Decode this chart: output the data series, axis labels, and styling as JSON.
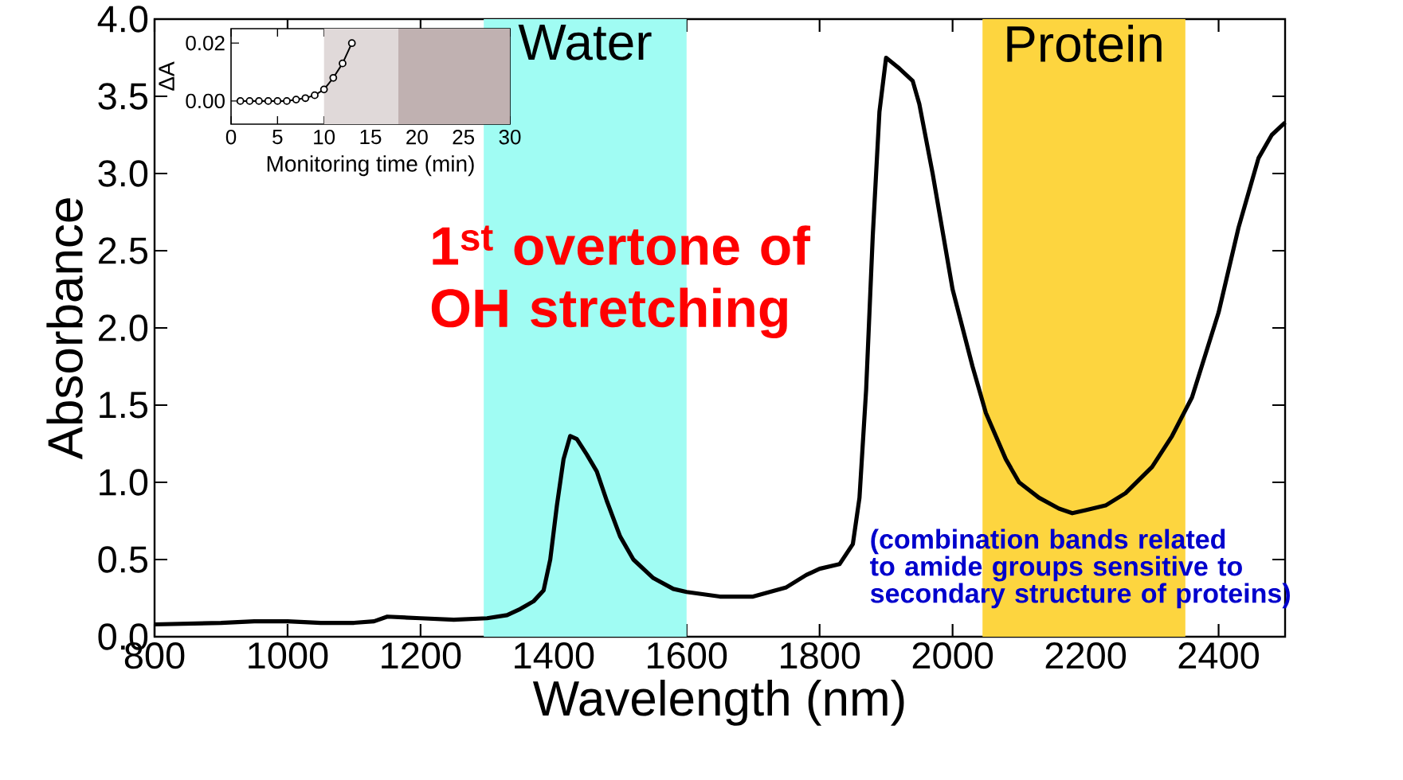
{
  "chart_data": [
    {
      "type": "line",
      "xlabel": "Wavelength (nm)",
      "ylabel": "Absorbance",
      "xlim": [
        800,
        2500
      ],
      "ylim": [
        0,
        4.0
      ],
      "xticks": [
        800,
        1000,
        1200,
        1400,
        1600,
        1800,
        2000,
        2200,
        2400
      ],
      "yticks": [
        {
          "value": 0,
          "label": "0.0"
        },
        {
          "value": 0.5,
          "label": "0.5"
        },
        {
          "value": 1.0,
          "label": "1.0"
        },
        {
          "value": 1.5,
          "label": "1.5"
        },
        {
          "value": 2.0,
          "label": "2.0"
        },
        {
          "value": 2.5,
          "label": "2.5"
        },
        {
          "value": 3.0,
          "label": "3.0"
        },
        {
          "value": 3.5,
          "label": "3.5"
        },
        {
          "value": 4.0,
          "label": "4.0"
        }
      ],
      "bands": [
        {
          "axis": "x",
          "from": 1295,
          "to": 1600,
          "label": "Water",
          "color": "#a0fcf3"
        },
        {
          "axis": "x",
          "from": 2045,
          "to": 2350,
          "label": "Protein",
          "color": "#fdd53f"
        }
      ],
      "annotations": [
        "1$^{st}$ overtone of OH stretching",
        "(combination bands related to amide groups sensitive to secondary structure of proteins)"
      ],
      "x": [
        800,
        900,
        950,
        1000,
        1050,
        1100,
        1130,
        1150,
        1200,
        1250,
        1300,
        1330,
        1350,
        1370,
        1385,
        1395,
        1405,
        1415,
        1425,
        1435,
        1450,
        1465,
        1480,
        1500,
        1520,
        1550,
        1580,
        1600,
        1650,
        1700,
        1750,
        1780,
        1800,
        1830,
        1850,
        1860,
        1870,
        1880,
        1890,
        1900,
        1920,
        1940,
        1950,
        1970,
        2000,
        2030,
        2050,
        2080,
        2100,
        2130,
        2160,
        2180,
        2200,
        2230,
        2260,
        2300,
        2330,
        2360,
        2400,
        2430,
        2460,
        2480,
        2500
      ],
      "series": [
        {
          "color": "#000000",
          "values": [
            0.08,
            0.09,
            0.1,
            0.1,
            0.09,
            0.09,
            0.1,
            0.13,
            0.12,
            0.11,
            0.12,
            0.14,
            0.18,
            0.23,
            0.3,
            0.5,
            0.85,
            1.15,
            1.3,
            1.28,
            1.18,
            1.07,
            0.88,
            0.65,
            0.5,
            0.38,
            0.31,
            0.29,
            0.26,
            0.26,
            0.32,
            0.4,
            0.44,
            0.47,
            0.6,
            0.9,
            1.6,
            2.6,
            3.4,
            3.75,
            3.68,
            3.6,
            3.45,
            3.0,
            2.25,
            1.75,
            1.45,
            1.15,
            1.0,
            0.9,
            0.83,
            0.8,
            0.82,
            0.85,
            0.93,
            1.1,
            1.3,
            1.55,
            2.1,
            2.65,
            3.1,
            3.25,
            3.33
          ]
        }
      ],
      "marker": "none",
      "line_style": "solid"
    },
    {
      "type": "line",
      "xlabel": "Monitoring time (min)",
      "ylabel": "ΔA",
      "xlim": [
        0,
        30
      ],
      "ylim": [
        -0.008,
        0.025
      ],
      "xticks": [
        0,
        5,
        10,
        15,
        20,
        25,
        30
      ],
      "yticks": [
        {
          "value": 0,
          "label": "0.00"
        },
        {
          "value": 0.02,
          "label": "0.02"
        }
      ],
      "bands": [
        {
          "axis": "x",
          "from": 10,
          "to": 18,
          "color": "#e0d9d9"
        },
        {
          "axis": "x",
          "from": 18,
          "to": 30,
          "color": "#c0b1b1"
        }
      ],
      "x": [
        1,
        2,
        3,
        4,
        5,
        6,
        7,
        8,
        9,
        10,
        11,
        12,
        13
      ],
      "series": [
        {
          "color": "#000000",
          "values": [
            0,
            0,
            0,
            0,
            0,
            0,
            0.0005,
            0.001,
            0.002,
            0.004,
            0.008,
            0.013,
            0.02
          ]
        }
      ],
      "marker": "circle",
      "line_style": "solid"
    }
  ]
}
